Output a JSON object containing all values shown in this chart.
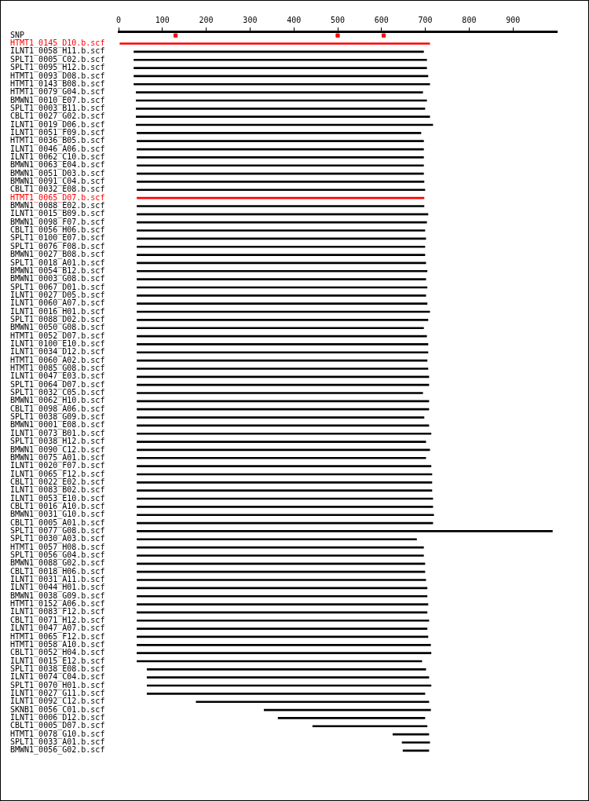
{
  "chart_data": {
    "type": "bar",
    "orientation": "horizontal",
    "grid": false,
    "legend": false,
    "xlim": [
      0,
      1000
    ],
    "xticks": [
      0,
      100,
      200,
      300,
      400,
      500,
      600,
      700,
      800,
      900
    ],
    "categories": [
      "SNP",
      "HTMT1_0145_D10.b.scf",
      "ILNT1_0058_H11.b.scf",
      "SPLT1_0005_C02.b.scf",
      "SPLT1_0095_H12.b.scf",
      "HTMT1_0093_D08.b.scf",
      "HTMT1_0143_B08.b.scf",
      "HTMT1_0079_G04.b.scf",
      "BMWN1_0010_E07.b.scf",
      "SPLT1_0003_B11.b.scf",
      "CBLT1_0027_G02.b.scf",
      "ILNT1_0019_D06.b.scf",
      "ILNT1_0051_F09.b.scf",
      "HTMT1_0036_B05.b.scf",
      "ILNT1_0046_A06.b.scf",
      "ILNT1_0062_C10.b.scf",
      "BMWN1_0063_E04.b.scf",
      "BMWN1_0051_D03.b.scf",
      "BMWN1_0091_C04.b.scf",
      "CBLT1_0032_E08.b.scf",
      "HTMT1_0065_D07.b.scf",
      "BMWN1_0088_E02.b.scf",
      "ILNT1_0015_B09.b.scf",
      "BMWN1_0098_F07.b.scf",
      "CBLT1_0056_H06.b.scf",
      "SPLT1_0100_E07.b.scf",
      "SPLT1_0076_F08.b.scf",
      "BMWN1_0027_B08.b.scf",
      "SPLT1_0018_A01.b.scf",
      "BMWN1_0054_B12.b.scf",
      "BMWN1_0003_G08.b.scf",
      "SPLT1_0067_D01.b.scf",
      "ILNT1_0027_D05.b.scf",
      "ILNT1_0060_A07.b.scf",
      "ILNT1_0016_H01.b.scf",
      "SPLT1_0088_D02.b.scf",
      "BMWN1_0050_G08.b.scf",
      "HTMT1_0052_D07.b.scf",
      "ILNT1_0100_E10.b.scf",
      "ILNT1_0034_D12.b.scf",
      "HTMT1_0060_A02.b.scf",
      "HTMT1_0085_G08.b.scf",
      "ILNT1_0047_E03.b.scf",
      "SPLT1_0064_D07.b.scf",
      "SPLT1_0032_C05.b.scf",
      "BMWN1_0062_H10.b.scf",
      "CBLT1_0098_A06.b.scf",
      "SPLT1_0038_G09.b.scf",
      "BMWN1_0001_E08.b.scf",
      "ILNT1_0073_B01.b.scf",
      "SPLT1_0038_H12.b.scf",
      "BMWN1_0090_C12.b.scf",
      "BMWN1_0075_A01.b.scf",
      "ILNT1_0020_F07.b.scf",
      "ILNT1_0065_F12.b.scf",
      "CBLT1_0022_E02.b.scf",
      "ILNT1_0083_B02.b.scf",
      "ILNT1_0053_E10.b.scf",
      "CBLT1_0016_A10.b.scf",
      "BMWN1_0031_G10.b.scf",
      "CBLT1_0005_A01.b.scf",
      "SPLT1_0077_G08.b.scf",
      "SPLT1_0030_A03.b.scf",
      "HTMT1_0057_H08.b.scf",
      "SPLT1_0056_G04.b.scf",
      "BMWN1_0088_G02.b.scf",
      "CBLT1_0018_H06.b.scf",
      "ILNT1_0031_A11.b.scf",
      "ILNT1_0044_H01.b.scf",
      "BMWN1_0038_G09.b.scf",
      "HTMT1_0152_A06.b.scf",
      "ILNT1_0083_F12.b.scf",
      "CBLT1_0071_H12.b.scf",
      "ILNT1_0047_A07.b.scf",
      "HTMT1_0065_F12.b.scf",
      "HTMT1_0058_A10.b.scf",
      "CBLT1_0052_H04.b.scf",
      "ILNT1_0015_E12.b.scf",
      "SPLT1_0038_E08.b.scf",
      "ILNT1_0074_C04.b.scf",
      "SPLT1_0070_H01.b.scf",
      "ILNT1_0027_G11.b.scf",
      "ILNT1_0092_C12.b.scf",
      "SKNB1_0056_C01.b.scf",
      "ILNT1_0006_D12.b.scf",
      "CBLT1_0005_D07.b.scf",
      "HTMT1_0078_G10.b.scf",
      "SPLT1_0033_A01.b.scf",
      "BMWN1_0056_G02.b.scf"
    ],
    "series": [
      {
        "base": [
          null,
          3,
          35,
          35,
          35,
          35,
          35,
          40,
          40,
          40,
          40,
          40,
          42,
          42,
          42,
          42,
          42,
          42,
          42,
          42,
          42,
          42,
          42,
          42,
          42,
          42,
          42,
          42,
          42,
          42,
          42,
          42,
          42,
          42,
          42,
          42,
          42,
          42,
          42,
          42,
          42,
          42,
          42,
          42,
          42,
          42,
          42,
          42,
          42,
          42,
          42,
          42,
          42,
          42,
          42,
          42,
          42,
          42,
          42,
          42,
          42,
          42,
          42,
          42,
          42,
          42,
          42,
          42,
          42,
          42,
          42,
          42,
          42,
          42,
          42,
          42,
          42,
          42,
          65,
          65,
          65,
          65,
          177,
          332,
          364,
          443,
          626,
          647,
          649
        ],
        "values": [
          null,
          707,
          661,
          668,
          668,
          671,
          675,
          654,
          663,
          659,
          670,
          677,
          648,
          654,
          654,
          654,
          654,
          654,
          655,
          657,
          655,
          655,
          664,
          661,
          657,
          659,
          657,
          657,
          659,
          662,
          659,
          662,
          659,
          662,
          668,
          664,
          654,
          661,
          664,
          664,
          662,
          664,
          666,
          666,
          652,
          666,
          666,
          655,
          666,
          671,
          659,
          668,
          659,
          671,
          673,
          673,
          673,
          675,
          675,
          677,
          675,
          948,
          638,
          654,
          654,
          657,
          657,
          659,
          662,
          662,
          664,
          662,
          666,
          662,
          664,
          670,
          671,
          650,
          636,
          643,
          648,
          634,
          531,
          380,
          335,
          261,
          82,
          63,
          59
        ],
        "colors": [
          "#000000",
          "#ff0000",
          "#000000",
          "#000000",
          "#000000",
          "#000000",
          "#000000",
          "#000000",
          "#000000",
          "#000000",
          "#000000",
          "#000000",
          "#000000",
          "#000000",
          "#000000",
          "#000000",
          "#000000",
          "#000000",
          "#000000",
          "#000000",
          "#ff0000",
          "#000000",
          "#000000",
          "#000000",
          "#000000",
          "#000000",
          "#000000",
          "#000000",
          "#000000",
          "#000000",
          "#000000",
          "#000000",
          "#000000",
          "#000000",
          "#000000",
          "#000000",
          "#000000",
          "#000000",
          "#000000",
          "#000000",
          "#000000",
          "#000000",
          "#000000",
          "#000000",
          "#000000",
          "#000000",
          "#000000",
          "#000000",
          "#000000",
          "#000000",
          "#000000",
          "#000000",
          "#000000",
          "#000000",
          "#000000",
          "#000000",
          "#000000",
          "#000000",
          "#000000",
          "#000000",
          "#000000",
          "#000000",
          "#000000",
          "#000000",
          "#000000",
          "#000000",
          "#000000",
          "#000000",
          "#000000",
          "#000000",
          "#000000",
          "#000000",
          "#000000",
          "#000000",
          "#000000",
          "#000000",
          "#000000",
          "#000000",
          "#000000",
          "#000000",
          "#000000",
          "#000000",
          "#000000",
          "#000000",
          "#000000",
          "#000000",
          "#000000",
          "#000000",
          "#000000"
        ]
      },
      {
        "type": "scatter",
        "marker": "square",
        "color": "#ff0000",
        "x": [
          "SNP",
          "SNP",
          "SNP"
        ],
        "values": [
          130,
          500,
          605
        ]
      }
    ]
  }
}
